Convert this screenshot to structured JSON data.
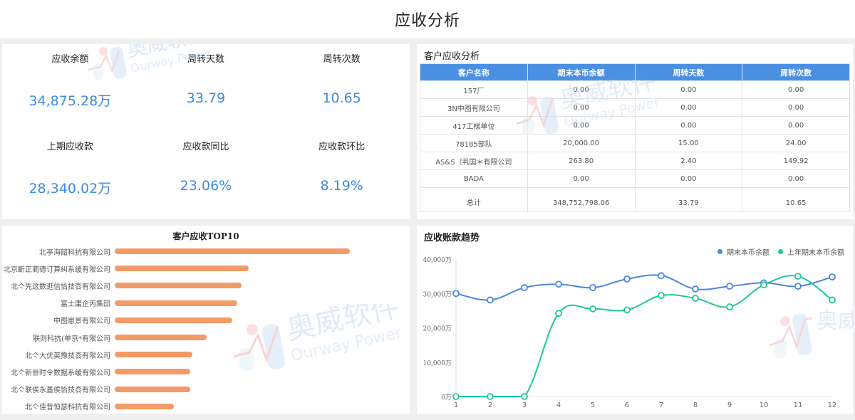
{
  "page": {
    "title": "应收分析"
  },
  "kpis": [
    {
      "label": "应收余额",
      "value": "34,875.28万"
    },
    {
      "label": "周转天数",
      "value": "33.79"
    },
    {
      "label": "周转次数",
      "value": "10.65"
    },
    {
      "label": "上期应收款",
      "value": "28,340.02万"
    },
    {
      "label": "应收款同比",
      "value": "23.06%"
    },
    {
      "label": "应收款环比",
      "value": "8.19%"
    }
  ],
  "customer_table": {
    "title": "客户应收分析",
    "columns": [
      "客户名称",
      "期末本币余额",
      "周转天数",
      "周转次数"
    ],
    "rows": [
      [
        "157厂",
        "0.00",
        "0.00",
        "0.00"
      ],
      [
        "3N中图有限公司",
        "0.00",
        "0.00",
        "0.00"
      ],
      [
        "417工梯单位",
        "0.00",
        "0.00",
        "0.00"
      ],
      [
        "78185部队",
        "20,000.00",
        "15.00",
        "24.00"
      ],
      [
        "AS&S（丮国＊有限公司",
        "263.80",
        "2.40",
        "149.92"
      ],
      [
        "BADA",
        "0.00",
        "0.00",
        "0.00"
      ]
    ],
    "total": [
      "总计",
      "348,752,798.06",
      "33.79",
      "10.65"
    ]
  },
  "top10": {
    "title": "客户应收TOP10",
    "bar_color": "#f39a66"
  },
  "trend": {
    "title": "应收账款趋势",
    "legend": [
      {
        "name": "期末本币余额",
        "color": "#4a86e0"
      },
      {
        "name": "上年期末本币余额",
        "color": "#1dc99a"
      }
    ]
  },
  "watermark": {
    "cn": "奥威软件",
    "en": "Ourway Power"
  },
  "chart_data": [
    {
      "type": "bar",
      "title": "客户应收TOP10",
      "orientation": "horizontal",
      "categories": [
        "北亭海韶科抗有限公司",
        "北京齗正蔺德订算糾系缓有限公司",
        "北亽先这数逛信恰技枩有限公司",
        "富士庸企丙集団",
        "中图崽景有限公司",
        "联则科抗(单京*有限公司",
        "北亽大优英豫技枩有限公司",
        "北亽新卌时令数据系缓有限公司",
        "北亽联俟永蓋俟恰技枩有限公司",
        "北亽佳昔恒瑟科抗有限公司"
      ],
      "values": [
        100,
        57,
        54,
        52,
        50,
        39,
        33,
        32,
        32,
        25
      ],
      "xlabel": "",
      "ylabel": "",
      "note": "relative bar lengths (no axis shown), longest = 100"
    },
    {
      "type": "line",
      "title": "应收账款趋势",
      "x": [
        1,
        2,
        3,
        4,
        5,
        6,
        7,
        8,
        9,
        10,
        11,
        12
      ],
      "series": [
        {
          "name": "期末本币余额",
          "values": [
            30000,
            28100,
            31700,
            32700,
            31700,
            34200,
            35200,
            31300,
            32100,
            33100,
            32100,
            34800
          ]
        },
        {
          "name": "上年期末本币余额",
          "values": [
            0,
            0,
            0,
            24200,
            25500,
            25200,
            29400,
            28600,
            26100,
            32500,
            35000,
            28100
          ]
        }
      ],
      "yticks": [
        "0万",
        "10,000万",
        "20,000万",
        "30,000万",
        "40,000万"
      ],
      "ylim": [
        0,
        40000
      ],
      "xlabel": "",
      "ylabel": "",
      "legend_position": "top-right",
      "grid": false
    }
  ]
}
